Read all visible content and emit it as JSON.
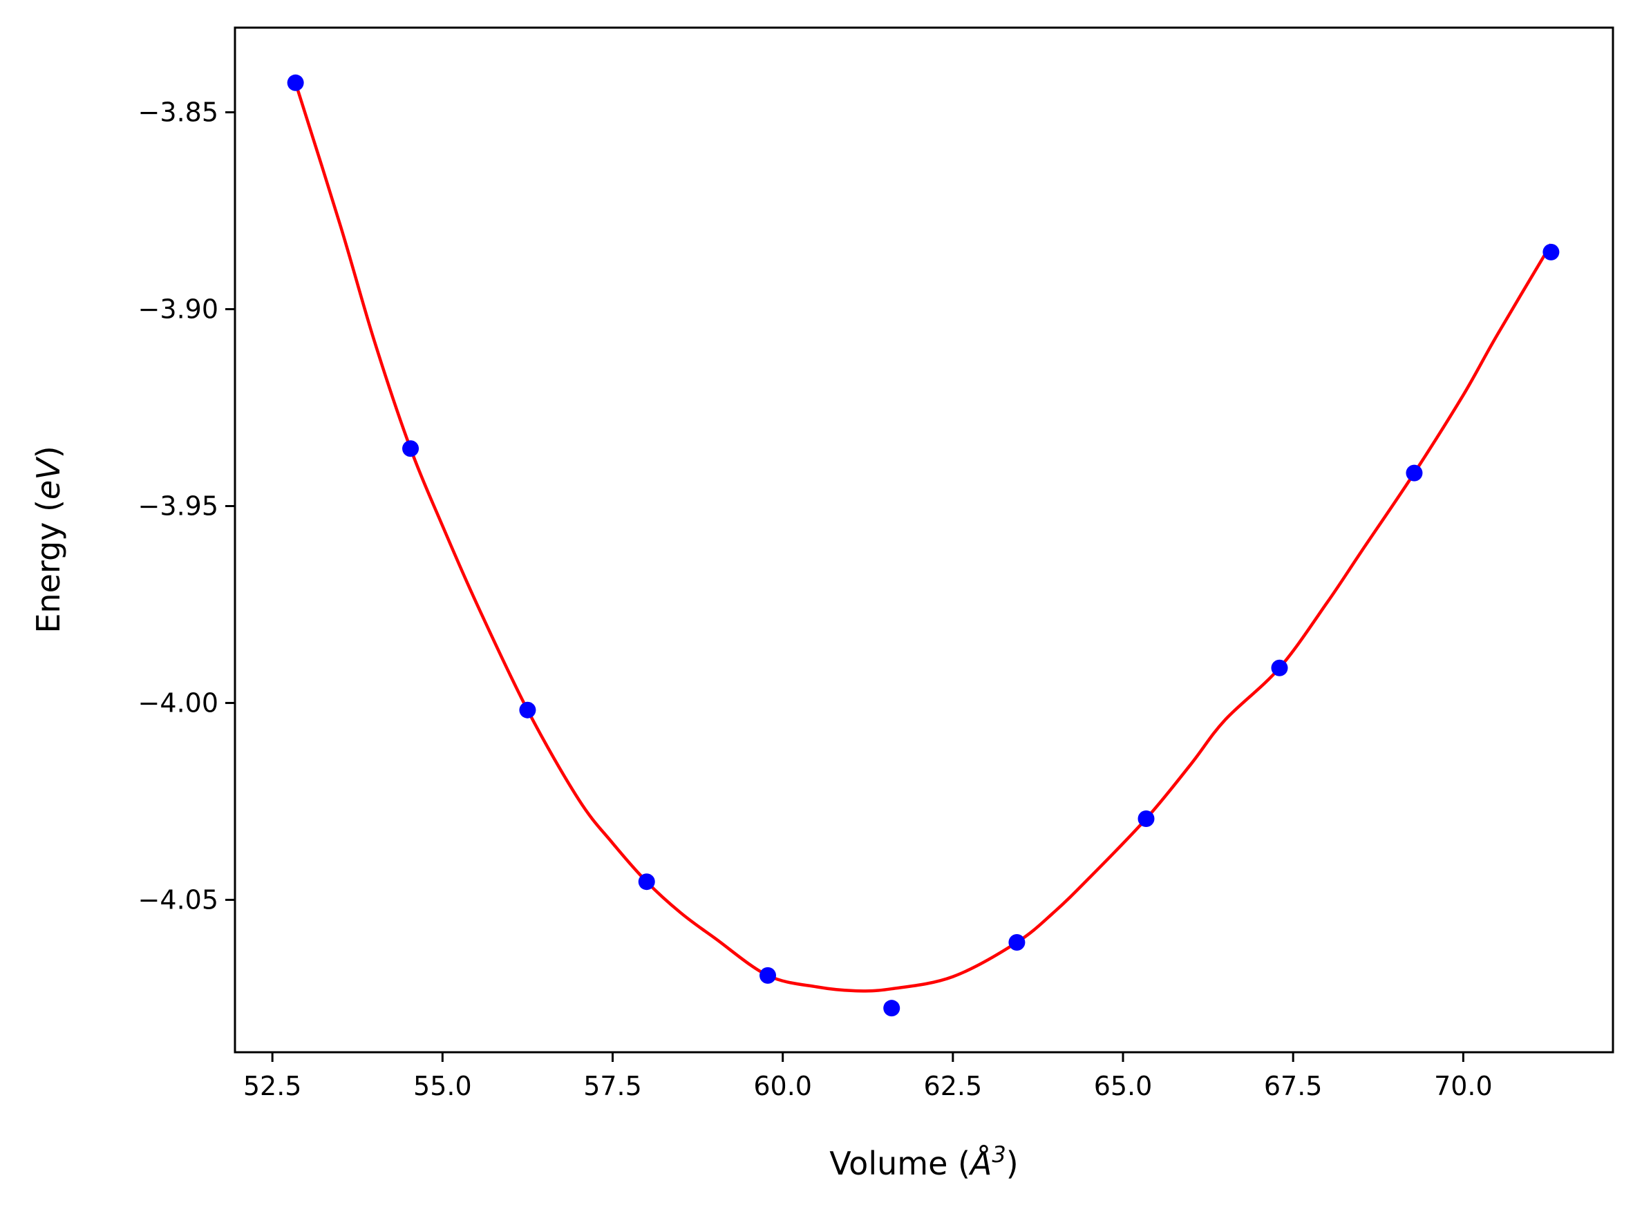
{
  "chart_data": {
    "type": "scatter",
    "xlabel": "Volume (Å³)",
    "xlabel_parts": {
      "text": "Volume (",
      "symbol": "Å",
      "sup": "3",
      "close": ")"
    },
    "ylabel": "Energy (eV)",
    "ylabel_parts": {
      "text": "Energy (",
      "symbol": "eV",
      "close": ")"
    },
    "xlim": [
      51.95,
      72.2
    ],
    "ylim": [
      -4.0887,
      -3.8285
    ],
    "x_ticks": [
      52.5,
      55.0,
      57.5,
      60.0,
      62.5,
      65.0,
      67.5,
      70.0
    ],
    "x_tick_labels": [
      "52.5",
      "55.0",
      "57.5",
      "60.0",
      "62.5",
      "65.0",
      "67.5",
      "70.0"
    ],
    "y_ticks": [
      -3.85,
      -3.9,
      -3.95,
      -4.0,
      -4.05
    ],
    "y_tick_labels": [
      "−3.85",
      "−3.90",
      "−3.95",
      "−4.00",
      "−4.05"
    ],
    "grid": false,
    "series": [
      {
        "kind": "points",
        "color": "#0000ff",
        "x": [
          52.84,
          54.53,
          56.25,
          58.0,
          59.78,
          61.6,
          63.44,
          65.34,
          67.3,
          69.28,
          71.29
        ],
        "y": [
          -3.8425,
          -3.9354,
          -4.0018,
          -4.0454,
          -4.0692,
          -4.0775,
          -4.0608,
          -4.0294,
          -3.9911,
          -3.9416,
          -3.8855
        ]
      },
      {
        "kind": "line",
        "color": "#ff0000",
        "x": [
          52.84,
          53.5,
          54.0,
          54.53,
          55.0,
          55.5,
          56.25,
          57.0,
          57.5,
          58.0,
          58.5,
          59.0,
          59.78,
          60.5,
          61.07,
          61.6,
          62.5,
          63.44,
          64.0,
          64.5,
          65.34,
          66.0,
          66.5,
          67.3,
          68.0,
          68.5,
          69.28,
          70.0,
          70.5,
          71.29
        ],
        "y": [
          -3.8425,
          -3.8788,
          -3.9082,
          -3.9354,
          -3.955,
          -3.9747,
          -4.0018,
          -4.0245,
          -4.0356,
          -4.0454,
          -4.0533,
          -4.0597,
          -4.0692,
          -4.0721,
          -4.0731,
          -4.0726,
          -4.0695,
          -4.0608,
          -4.0529,
          -4.0445,
          -4.0294,
          -4.0155,
          -4.0043,
          -3.9911,
          -3.9745,
          -3.9616,
          -3.9416,
          -3.9218,
          -3.9065,
          -3.8835
        ]
      }
    ]
  }
}
